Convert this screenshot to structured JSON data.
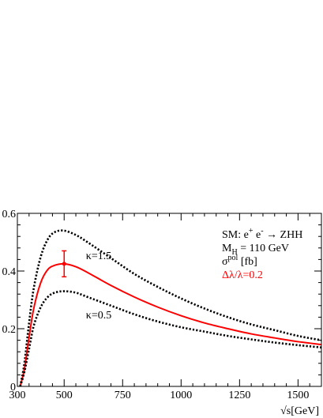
{
  "chart_data": {
    "type": "line",
    "xlabel": "√s[GeV]",
    "ylabel": "",
    "xlim": [
      300,
      1600
    ],
    "ylim": [
      0,
      0.6
    ],
    "x_ticks": [
      300,
      500,
      750,
      1000,
      1250,
      1500
    ],
    "x_tick_labels": [
      "300",
      "500",
      "750",
      "1000",
      "1250",
      "1500"
    ],
    "y_ticks": [
      0,
      0.2,
      0.4,
      0.6
    ],
    "y_tick_labels": [
      "0",
      "0.2",
      "0.4",
      "0.6"
    ],
    "legend_lines": [
      {
        "text": "SM: e+ e- → ZHH",
        "color": "#000000"
      },
      {
        "text": "MH = 110 GeV",
        "color": "#000000"
      },
      {
        "text": "σpol [fb]",
        "color": "#000000"
      },
      {
        "text": "Δλ/λ=0.2",
        "color": "#ff0000"
      }
    ],
    "series": [
      {
        "name": "κ=1.5",
        "style": "dotted",
        "color": "#000000",
        "x": [
          312,
          330,
          350,
          370,
          400,
          430,
          460,
          500,
          550,
          600,
          700,
          800,
          900,
          1000,
          1100,
          1200,
          1300,
          1400,
          1500,
          1600
        ],
        "y": [
          0.0,
          0.08,
          0.22,
          0.34,
          0.45,
          0.51,
          0.535,
          0.54,
          0.525,
          0.5,
          0.445,
          0.39,
          0.345,
          0.305,
          0.27,
          0.24,
          0.215,
          0.195,
          0.175,
          0.16
        ]
      },
      {
        "name": "",
        "style": "solid",
        "color": "#ff0000",
        "x": [
          312,
          330,
          350,
          370,
          400,
          430,
          460,
          500,
          550,
          600,
          700,
          800,
          900,
          1000,
          1100,
          1200,
          1300,
          1400,
          1500,
          1600
        ],
        "y": [
          0.0,
          0.06,
          0.17,
          0.27,
          0.36,
          0.405,
          0.42,
          0.425,
          0.415,
          0.395,
          0.35,
          0.31,
          0.275,
          0.245,
          0.22,
          0.2,
          0.182,
          0.168,
          0.155,
          0.145
        ]
      },
      {
        "name": "κ=0.5",
        "style": "dotted",
        "color": "#000000",
        "x": [
          312,
          330,
          350,
          370,
          400,
          430,
          460,
          500,
          550,
          600,
          700,
          800,
          900,
          1000,
          1100,
          1200,
          1300,
          1400,
          1500,
          1600
        ],
        "y": [
          0.0,
          0.05,
          0.13,
          0.21,
          0.275,
          0.31,
          0.325,
          0.33,
          0.325,
          0.31,
          0.28,
          0.25,
          0.225,
          0.205,
          0.19,
          0.175,
          0.163,
          0.152,
          0.143,
          0.135
        ]
      }
    ],
    "points": [
      {
        "x": 500,
        "y": 0.425,
        "err": 0.045,
        "color": "#ff0000"
      }
    ],
    "curve_labels": [
      {
        "text": "κ=1.5",
        "x": 620,
        "y": 0.455
      },
      {
        "text": "κ=0.5",
        "x": 620,
        "y": 0.225
      }
    ]
  }
}
